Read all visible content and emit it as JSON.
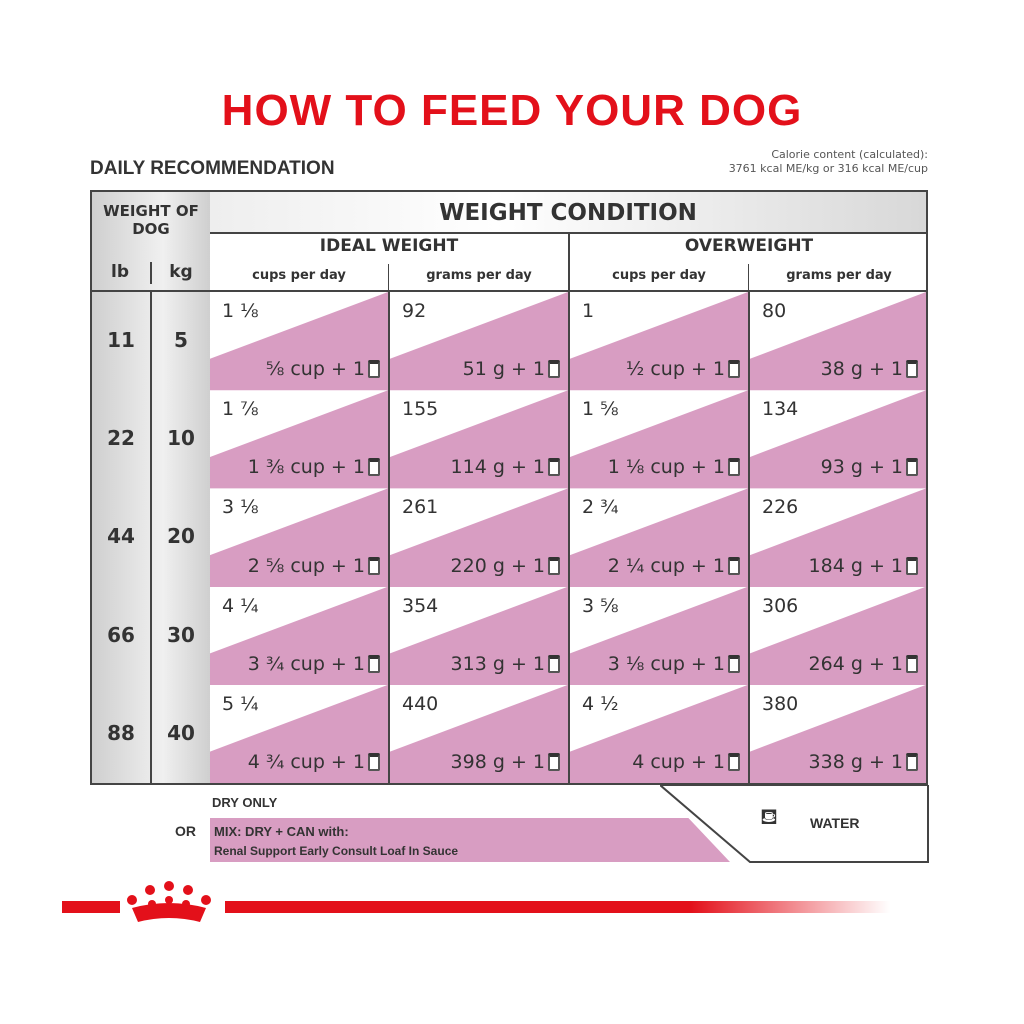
{
  "title": "HOW TO FEED YOUR DOG",
  "daily": "DAILY RECOMMENDATION",
  "calorie": {
    "line1": "Calorie content (calculated):",
    "line2": "3761 kcal ME/kg or 316 kcal ME/cup"
  },
  "header": {
    "weight_of_dog": "WEIGHT OF DOG",
    "lb": "lb",
    "kg": "kg",
    "condition": "WEIGHT CONDITION",
    "ideal": "IDEAL WEIGHT",
    "over": "OVERWEIGHT",
    "cups": "cups per day",
    "grams": "grams per day"
  },
  "rows": [
    {
      "lb": "11",
      "kg": "5",
      "cells": [
        [
          "1 ⅛",
          "⅝ cup + 1"
        ],
        [
          "92",
          "51 g + 1"
        ],
        [
          "1",
          "½ cup + 1"
        ],
        [
          "80",
          "38 g + 1"
        ]
      ]
    },
    {
      "lb": "22",
      "kg": "10",
      "cells": [
        [
          "1 ⅞",
          "1 ⅜ cup + 1"
        ],
        [
          "155",
          "114 g + 1"
        ],
        [
          "1 ⅝",
          "1 ⅛ cup + 1"
        ],
        [
          "134",
          "93 g + 1"
        ]
      ]
    },
    {
      "lb": "44",
      "kg": "20",
      "cells": [
        [
          "3 ⅛",
          "2 ⅝ cup + 1"
        ],
        [
          "261",
          "220 g + 1"
        ],
        [
          "2 ¾",
          "2 ¼ cup + 1"
        ],
        [
          "226",
          "184 g + 1"
        ]
      ]
    },
    {
      "lb": "66",
      "kg": "30",
      "cells": [
        [
          "4 ¼",
          "3 ¾ cup + 1"
        ],
        [
          "354",
          "313 g + 1"
        ],
        [
          "3 ⅝",
          "3 ⅛ cup + 1"
        ],
        [
          "306",
          "264 g + 1"
        ]
      ]
    },
    {
      "lb": "88",
      "kg": "40",
      "cells": [
        [
          "5 ¼",
          "4 ¾ cup + 1"
        ],
        [
          "440",
          "398 g + 1"
        ],
        [
          "4 ½",
          "4 cup + 1"
        ],
        [
          "380",
          "338 g + 1"
        ]
      ]
    }
  ],
  "legend": {
    "dry": "DRY ONLY",
    "or": "OR",
    "mix": "MIX: DRY + CAN with:",
    "product": "Renal Support Early Consult Loaf In Sauce",
    "water": "WATER"
  },
  "colors": {
    "accent": "#e3101a",
    "pink": "#d89dc2"
  },
  "icons": {
    "can": "can-icon",
    "water": "water-bowl-icon",
    "logo": "royal-crown-logo"
  }
}
